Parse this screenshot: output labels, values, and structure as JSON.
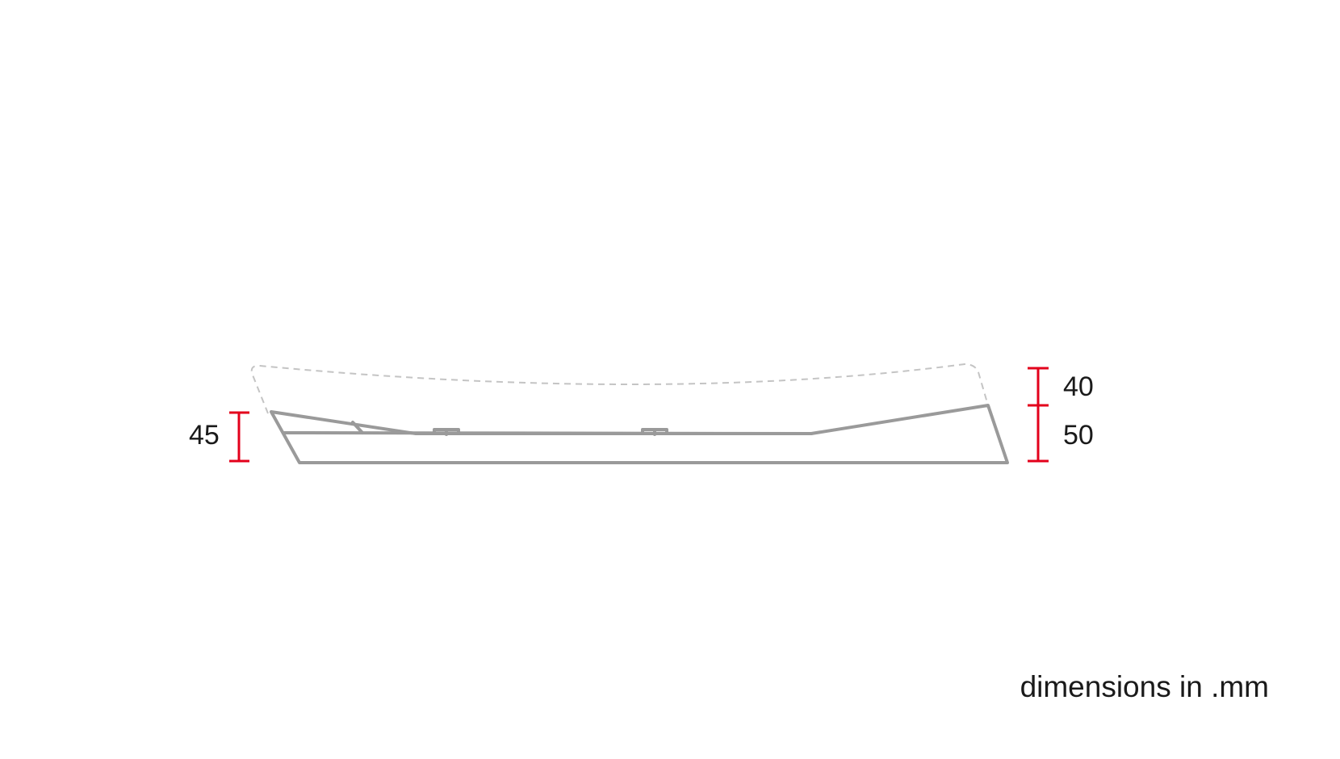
{
  "drawing": {
    "outline_color": "#9a9a9a",
    "dashed_color": "#c4c4c4",
    "dimension_color": "#e3001b"
  },
  "dimensions": {
    "left_height": "45",
    "right_upper": "40",
    "right_lower": "50"
  },
  "units_note": "dimensions in .mm"
}
